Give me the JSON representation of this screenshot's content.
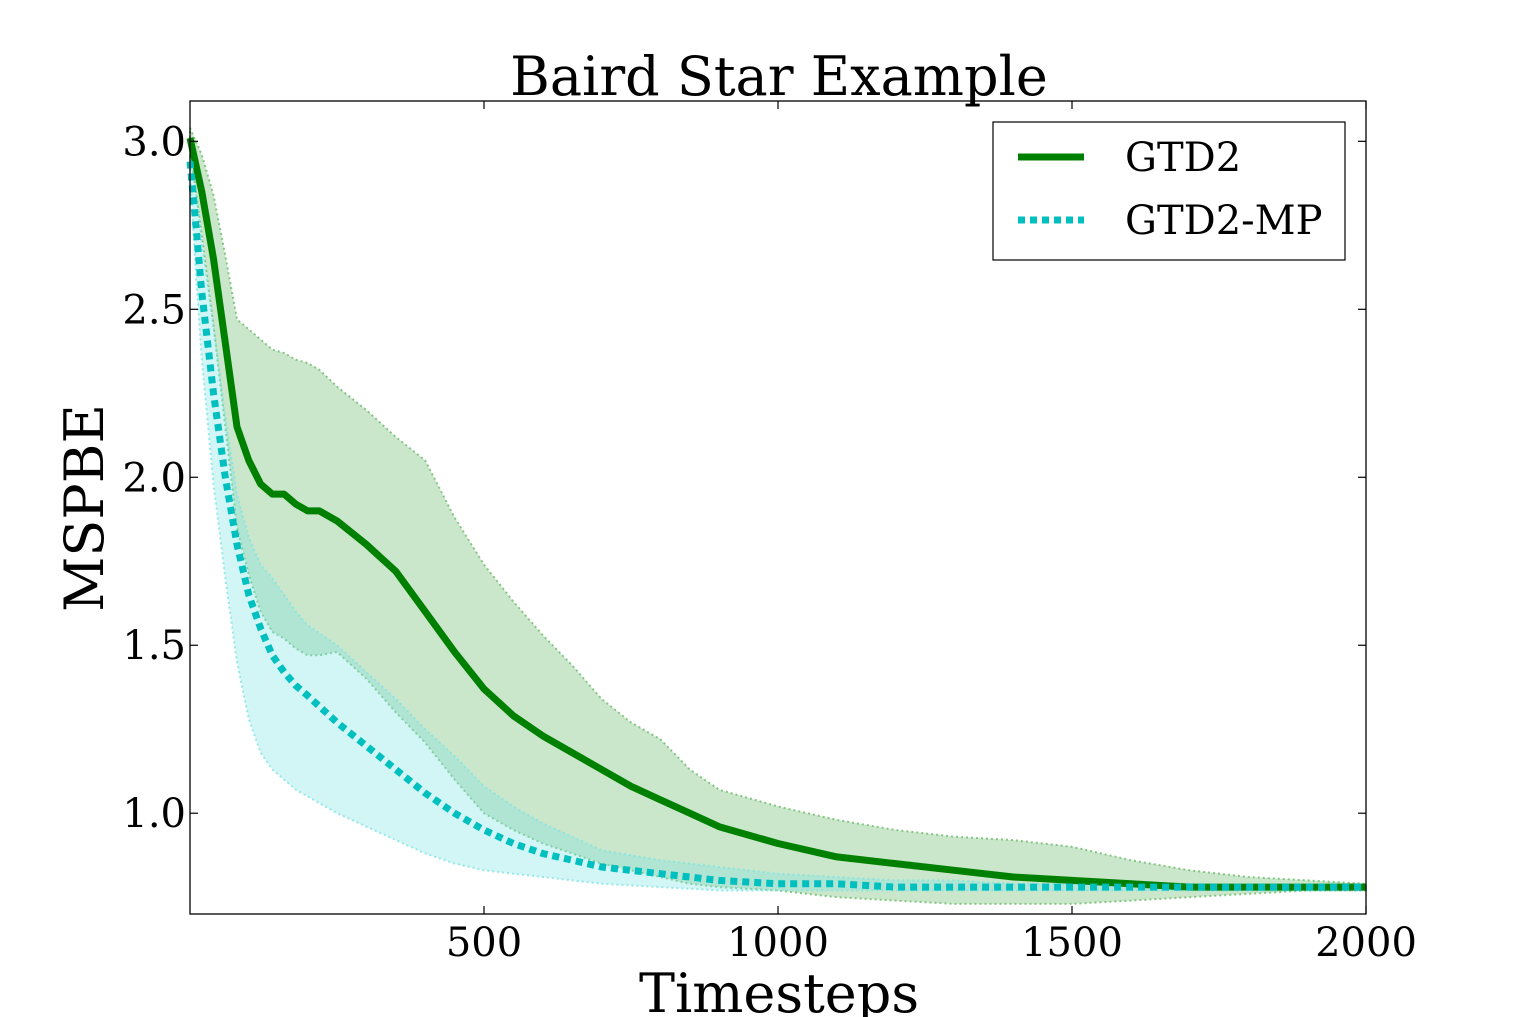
{
  "chart_data": {
    "type": "line",
    "title": "Baird Star Example",
    "xlabel": "Timesteps",
    "ylabel": "MSPBE",
    "xlim": [
      0,
      2000
    ],
    "ylim": [
      0.7,
      3.12
    ],
    "x_ticks": [
      500,
      1000,
      1500,
      2000
    ],
    "y_ticks": [
      1.0,
      1.5,
      2.0,
      2.5,
      3.0
    ],
    "x_tick_labels": [
      "500",
      "1000",
      "1500",
      "2000"
    ],
    "y_tick_labels": [
      "1.0",
      "1.5",
      "2.0",
      "2.5",
      "3.0"
    ],
    "grid": false,
    "legend_position": "top-right",
    "series": [
      {
        "name": "GTD2",
        "color": "#008000",
        "band_color": "#6aba6a",
        "style": "solid",
        "x": [
          0,
          20,
          40,
          60,
          80,
          100,
          120,
          140,
          160,
          180,
          200,
          220,
          250,
          300,
          350,
          400,
          450,
          500,
          550,
          600,
          650,
          700,
          750,
          800,
          850,
          900,
          1000,
          1100,
          1200,
          1300,
          1400,
          1500,
          1600,
          1700,
          1800,
          1900,
          2000
        ],
        "y": [
          3.01,
          2.85,
          2.65,
          2.4,
          2.15,
          2.05,
          1.98,
          1.95,
          1.95,
          1.92,
          1.9,
          1.9,
          1.87,
          1.8,
          1.72,
          1.6,
          1.48,
          1.37,
          1.29,
          1.23,
          1.18,
          1.13,
          1.08,
          1.04,
          1.0,
          0.96,
          0.91,
          0.87,
          0.85,
          0.83,
          0.81,
          0.8,
          0.79,
          0.78,
          0.78,
          0.78,
          0.78
        ],
        "upper": [
          3.04,
          2.96,
          2.84,
          2.66,
          2.47,
          2.44,
          2.41,
          2.38,
          2.37,
          2.35,
          2.34,
          2.32,
          2.27,
          2.2,
          2.12,
          2.05,
          1.88,
          1.74,
          1.63,
          1.53,
          1.44,
          1.34,
          1.27,
          1.22,
          1.13,
          1.07,
          1.02,
          0.98,
          0.95,
          0.93,
          0.92,
          0.9,
          0.86,
          0.83,
          0.81,
          0.8,
          0.79
        ],
        "lower": [
          2.98,
          2.72,
          2.45,
          2.15,
          1.85,
          1.71,
          1.6,
          1.54,
          1.52,
          1.49,
          1.47,
          1.47,
          1.48,
          1.4,
          1.3,
          1.21,
          1.1,
          1.0,
          0.95,
          0.91,
          0.88,
          0.85,
          0.83,
          0.81,
          0.79,
          0.78,
          0.77,
          0.75,
          0.74,
          0.73,
          0.73,
          0.73,
          0.74,
          0.75,
          0.76,
          0.77,
          0.77
        ]
      },
      {
        "name": "GTD2-MP",
        "color": "#00bfbf",
        "band_color": "#7fe3e3",
        "style": "dotted",
        "x": [
          0,
          10,
          20,
          40,
          60,
          80,
          100,
          120,
          140,
          160,
          180,
          200,
          250,
          300,
          350,
          400,
          450,
          500,
          550,
          600,
          650,
          700,
          800,
          900,
          1000,
          1100,
          1200,
          1300,
          1400,
          1500,
          1600,
          1700,
          1800,
          1900,
          2000
        ],
        "y": [
          2.94,
          2.75,
          2.55,
          2.25,
          2.0,
          1.8,
          1.65,
          1.55,
          1.47,
          1.42,
          1.38,
          1.35,
          1.27,
          1.2,
          1.13,
          1.06,
          1.0,
          0.95,
          0.91,
          0.88,
          0.86,
          0.84,
          0.82,
          0.8,
          0.79,
          0.79,
          0.78,
          0.78,
          0.78,
          0.78,
          0.78,
          0.78,
          0.78,
          0.78,
          0.78
        ],
        "upper": [
          2.96,
          2.85,
          2.7,
          2.45,
          2.18,
          1.95,
          1.82,
          1.74,
          1.7,
          1.65,
          1.6,
          1.56,
          1.5,
          1.42,
          1.34,
          1.25,
          1.17,
          1.08,
          1.02,
          0.97,
          0.93,
          0.89,
          0.86,
          0.84,
          0.82,
          0.81,
          0.8,
          0.8,
          0.79,
          0.79,
          0.79,
          0.79,
          0.78,
          0.78,
          0.78
        ],
        "lower": [
          2.92,
          2.6,
          2.35,
          1.98,
          1.7,
          1.45,
          1.28,
          1.18,
          1.13,
          1.1,
          1.07,
          1.05,
          1.0,
          0.96,
          0.92,
          0.88,
          0.85,
          0.83,
          0.82,
          0.81,
          0.8,
          0.79,
          0.78,
          0.77,
          0.77,
          0.77,
          0.77,
          0.77,
          0.77,
          0.77,
          0.77,
          0.77,
          0.77,
          0.77,
          0.77
        ]
      }
    ]
  }
}
